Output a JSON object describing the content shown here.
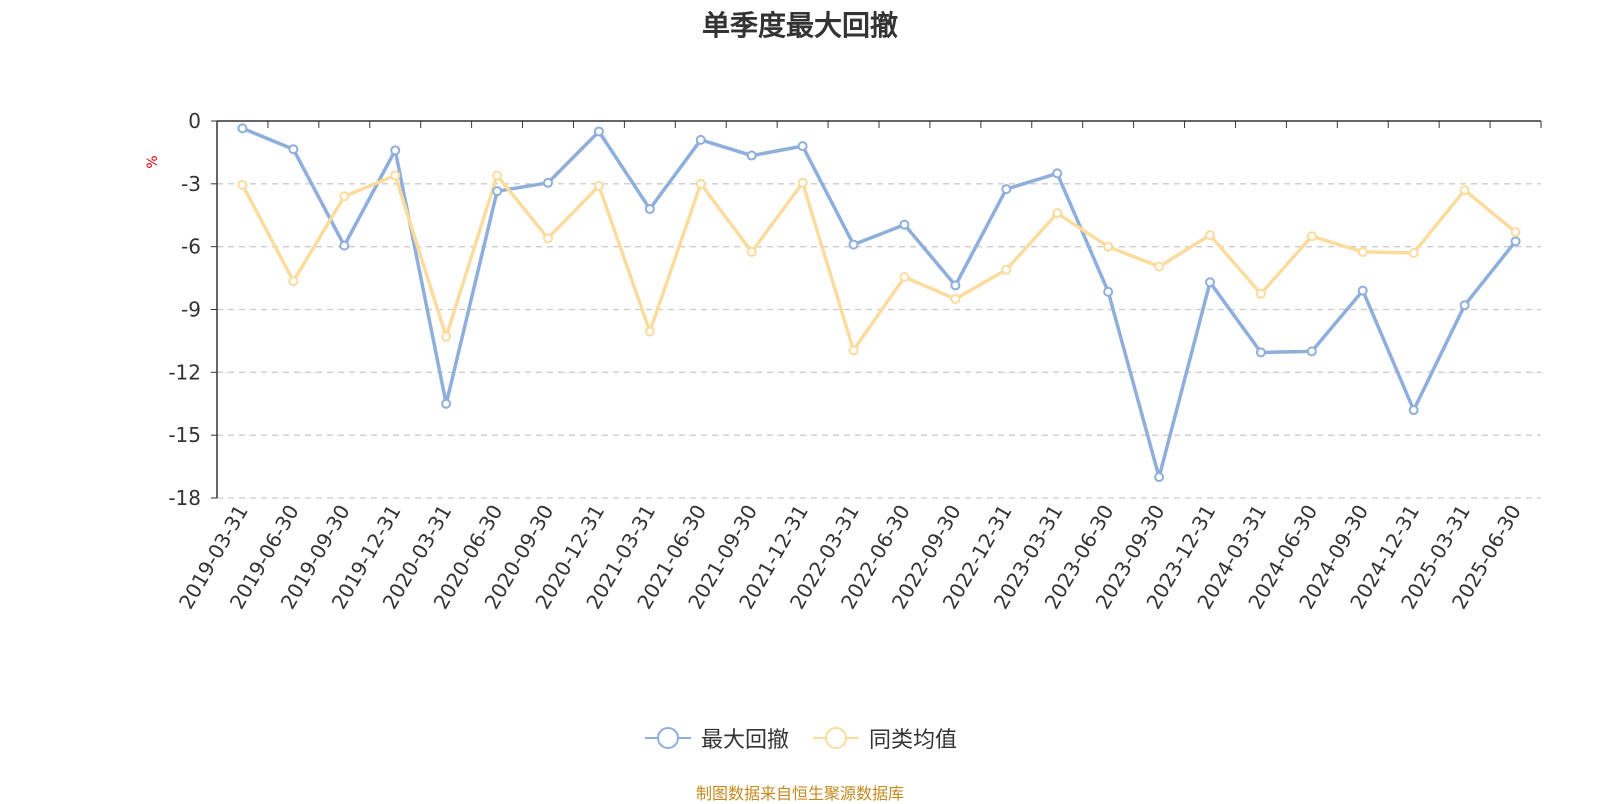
{
  "chart_data": {
    "type": "line",
    "title": "单季度最大回撤",
    "ylabel": "%",
    "ylim": [
      -18,
      0
    ],
    "yticks": [
      0,
      -3,
      -6,
      -9,
      -12,
      -15,
      -18
    ],
    "grid": true,
    "legend_position": "bottom",
    "categories": [
      "2019-03-31",
      "2019-06-30",
      "2019-09-30",
      "2019-12-31",
      "2020-03-31",
      "2020-06-30",
      "2020-09-30",
      "2020-12-31",
      "2021-03-31",
      "2021-06-30",
      "2021-09-30",
      "2021-12-31",
      "2022-03-31",
      "2022-06-30",
      "2022-09-30",
      "2022-12-31",
      "2023-03-31",
      "2023-06-30",
      "2023-09-30",
      "2023-12-31",
      "2024-03-31",
      "2024-06-30",
      "2024-09-30",
      "2024-12-31",
      "2025-03-31",
      "2025-06-30"
    ],
    "series": [
      {
        "name": "最大回撤",
        "color": "#8eaedc",
        "values": [
          -0.35,
          -1.35,
          -5.95,
          -1.4,
          -13.5,
          -3.35,
          -2.95,
          -0.5,
          -4.2,
          -0.9,
          -1.65,
          -1.2,
          -5.9,
          -4.95,
          -7.85,
          -3.25,
          -2.5,
          -8.15,
          -17.0,
          -7.7,
          -11.05,
          -11.0,
          -8.1,
          -13.8,
          -8.8,
          -5.75
        ]
      },
      {
        "name": "同类均值",
        "color": "#fbdc9e",
        "values": [
          -3.05,
          -7.65,
          -3.6,
          -2.6,
          -10.3,
          -2.6,
          -5.6,
          -3.1,
          -10.05,
          -3.0,
          -6.25,
          -2.95,
          -10.95,
          -7.45,
          -8.5,
          -7.1,
          -4.4,
          -6.0,
          -6.95,
          -5.45,
          -8.25,
          -5.5,
          -6.25,
          -6.3,
          -3.3,
          -5.3
        ]
      }
    ]
  },
  "footer": {
    "source": "制图数据来自恒生聚源数据库"
  }
}
